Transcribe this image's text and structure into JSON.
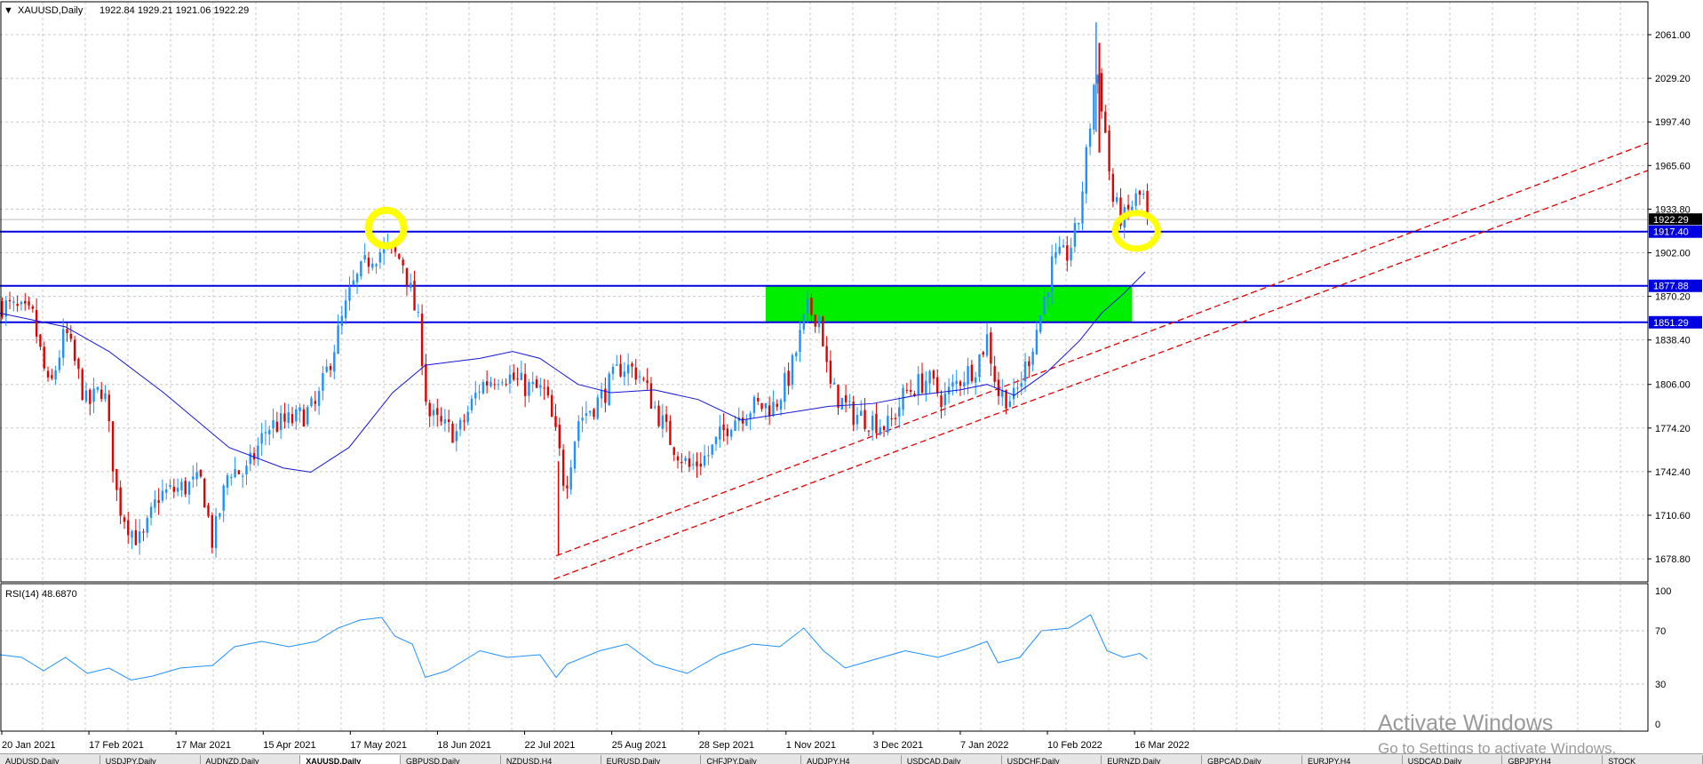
{
  "chart_header": {
    "triangle": "▼",
    "symbol": "XAUUSD,Daily",
    "ohlc": "1922.84 1929.21 1921.06 1922.29"
  },
  "rsi_header": {
    "label": "RSI(14) 48.6870"
  },
  "colors": {
    "bull": "#1e90ff",
    "bear": "#e00000",
    "ma": "#1414d8",
    "support_line": "#0000e0",
    "trendline": "#e00000",
    "zone": "#00ee00",
    "highlight": "#ffff00",
    "rsi": "#1e90ff",
    "grid": "#c8c8c8"
  },
  "price_axis": {
    "min": 1662,
    "max": 2085,
    "ticks": [
      "2061.00",
      "2029.20",
      "1997.40",
      "1965.60",
      "1933.80",
      "1902.00",
      "1870.20",
      "1838.40",
      "1806.00",
      "1774.20",
      "1742.40",
      "1710.60",
      "1678.80"
    ]
  },
  "levels": [
    {
      "value": 1917.4,
      "label": "1917.40"
    },
    {
      "value": 1877.88,
      "label": "1877.88"
    },
    {
      "value": 1851.29,
      "label": "1851.29"
    }
  ],
  "current_price": {
    "value": 1922.29,
    "label": "1922.29"
  },
  "rsi_axis": {
    "ticks": [
      "100",
      "70",
      "30",
      "0"
    ]
  },
  "time_axis": {
    "labels": [
      "20 Jan 2021",
      "17 Feb 2021",
      "17 Mar 2021",
      "15 Apr 2021",
      "17 May 2021",
      "18 Jun 2021",
      "22 Jul 2021",
      "25 Aug 2021",
      "28 Sep 2021",
      "1 Nov 2021",
      "3 Dec 2021",
      "7 Jan 2022",
      "10 Feb 2022",
      "16 Mar 2022"
    ]
  },
  "anchors": [
    {
      "x": 0,
      "p": 1865
    },
    {
      "x": 30,
      "p": 1855
    },
    {
      "x": 45,
      "p": 1800
    },
    {
      "x": 60,
      "p": 1845
    },
    {
      "x": 80,
      "p": 1790
    },
    {
      "x": 95,
      "p": 1805
    },
    {
      "x": 108,
      "p": 1720
    },
    {
      "x": 120,
      "p": 1700
    },
    {
      "x": 130,
      "p": 1690
    },
    {
      "x": 145,
      "p": 1725
    },
    {
      "x": 165,
      "p": 1730
    },
    {
      "x": 185,
      "p": 1735
    },
    {
      "x": 195,
      "p": 1690
    },
    {
      "x": 210,
      "p": 1745
    },
    {
      "x": 225,
      "p": 1740
    },
    {
      "x": 245,
      "p": 1775
    },
    {
      "x": 270,
      "p": 1780
    },
    {
      "x": 290,
      "p": 1790
    },
    {
      "x": 305,
      "p": 1830
    },
    {
      "x": 322,
      "p": 1875
    },
    {
      "x": 340,
      "p": 1900
    },
    {
      "x": 355,
      "p": 1905
    },
    {
      "x": 370,
      "p": 1895
    },
    {
      "x": 385,
      "p": 1845
    },
    {
      "x": 392,
      "p": 1785
    },
    {
      "x": 405,
      "p": 1775
    },
    {
      "x": 420,
      "p": 1770
    },
    {
      "x": 440,
      "p": 1805
    },
    {
      "x": 460,
      "p": 1815
    },
    {
      "x": 480,
      "p": 1805
    },
    {
      "x": 500,
      "p": 1800
    },
    {
      "x": 512,
      "p": 1760
    },
    {
      "x": 518,
      "p": 1730
    },
    {
      "x": 530,
      "p": 1780
    },
    {
      "x": 550,
      "p": 1795
    },
    {
      "x": 570,
      "p": 1820
    },
    {
      "x": 585,
      "p": 1815
    },
    {
      "x": 600,
      "p": 1790
    },
    {
      "x": 615,
      "p": 1765
    },
    {
      "x": 632,
      "p": 1745
    },
    {
      "x": 650,
      "p": 1755
    },
    {
      "x": 670,
      "p": 1780
    },
    {
      "x": 690,
      "p": 1790
    },
    {
      "x": 710,
      "p": 1790
    },
    {
      "x": 725,
      "p": 1815
    },
    {
      "x": 740,
      "p": 1860
    },
    {
      "x": 752,
      "p": 1855
    },
    {
      "x": 760,
      "p": 1805
    },
    {
      "x": 780,
      "p": 1785
    },
    {
      "x": 800,
      "p": 1780
    },
    {
      "x": 815,
      "p": 1775
    },
    {
      "x": 830,
      "p": 1800
    },
    {
      "x": 850,
      "p": 1810
    },
    {
      "x": 865,
      "p": 1795
    },
    {
      "x": 880,
      "p": 1810
    },
    {
      "x": 895,
      "p": 1820
    },
    {
      "x": 905,
      "p": 1840
    },
    {
      "x": 915,
      "p": 1800
    },
    {
      "x": 930,
      "p": 1795
    },
    {
      "x": 945,
      "p": 1830
    },
    {
      "x": 955,
      "p": 1860
    },
    {
      "x": 965,
      "p": 1895
    },
    {
      "x": 978,
      "p": 1900
    },
    {
      "x": 988,
      "p": 1920
    },
    {
      "x": 998,
      "p": 1985
    },
    {
      "x": 1005,
      "p": 2040
    },
    {
      "x": 1012,
      "p": 2000
    },
    {
      "x": 1020,
      "p": 1940
    },
    {
      "x": 1030,
      "p": 1925
    },
    {
      "x": 1040,
      "p": 1940
    },
    {
      "x": 1048,
      "p": 1945
    },
    {
      "x": 1052,
      "p": 1922
    }
  ],
  "ma_points": [
    {
      "x": 0,
      "p": 1858
    },
    {
      "x": 60,
      "p": 1848
    },
    {
      "x": 100,
      "p": 1830
    },
    {
      "x": 150,
      "p": 1800
    },
    {
      "x": 210,
      "p": 1760
    },
    {
      "x": 260,
      "p": 1745
    },
    {
      "x": 285,
      "p": 1742
    },
    {
      "x": 320,
      "p": 1760
    },
    {
      "x": 360,
      "p": 1800
    },
    {
      "x": 390,
      "p": 1820
    },
    {
      "x": 440,
      "p": 1825
    },
    {
      "x": 470,
      "p": 1830
    },
    {
      "x": 495,
      "p": 1825
    },
    {
      "x": 530,
      "p": 1806
    },
    {
      "x": 560,
      "p": 1800
    },
    {
      "x": 600,
      "p": 1802
    },
    {
      "x": 640,
      "p": 1795
    },
    {
      "x": 680,
      "p": 1780
    },
    {
      "x": 720,
      "p": 1785
    },
    {
      "x": 760,
      "p": 1790
    },
    {
      "x": 800,
      "p": 1792
    },
    {
      "x": 840,
      "p": 1798
    },
    {
      "x": 880,
      "p": 1802
    },
    {
      "x": 905,
      "p": 1806
    },
    {
      "x": 930,
      "p": 1798
    },
    {
      "x": 960,
      "p": 1815
    },
    {
      "x": 990,
      "p": 1838
    },
    {
      "x": 1010,
      "p": 1858
    },
    {
      "x": 1030,
      "p": 1872
    },
    {
      "x": 1050,
      "p": 1888
    }
  ],
  "rsi_points": [
    {
      "x": 0,
      "r": 52
    },
    {
      "x": 20,
      "r": 50
    },
    {
      "x": 40,
      "r": 40
    },
    {
      "x": 60,
      "r": 50
    },
    {
      "x": 80,
      "r": 38
    },
    {
      "x": 100,
      "r": 42
    },
    {
      "x": 120,
      "r": 33
    },
    {
      "x": 140,
      "r": 36
    },
    {
      "x": 165,
      "r": 42
    },
    {
      "x": 195,
      "r": 44
    },
    {
      "x": 215,
      "r": 58
    },
    {
      "x": 240,
      "r": 62
    },
    {
      "x": 265,
      "r": 58
    },
    {
      "x": 290,
      "r": 62
    },
    {
      "x": 310,
      "r": 72
    },
    {
      "x": 330,
      "r": 78
    },
    {
      "x": 350,
      "r": 80
    },
    {
      "x": 362,
      "r": 66
    },
    {
      "x": 378,
      "r": 60
    },
    {
      "x": 390,
      "r": 35
    },
    {
      "x": 410,
      "r": 40
    },
    {
      "x": 440,
      "r": 55
    },
    {
      "x": 465,
      "r": 50
    },
    {
      "x": 495,
      "r": 52
    },
    {
      "x": 510,
      "r": 35
    },
    {
      "x": 520,
      "r": 45
    },
    {
      "x": 550,
      "r": 55
    },
    {
      "x": 575,
      "r": 60
    },
    {
      "x": 600,
      "r": 45
    },
    {
      "x": 630,
      "r": 38
    },
    {
      "x": 660,
      "r": 52
    },
    {
      "x": 690,
      "r": 60
    },
    {
      "x": 715,
      "r": 58
    },
    {
      "x": 737,
      "r": 72
    },
    {
      "x": 755,
      "r": 55
    },
    {
      "x": 775,
      "r": 42
    },
    {
      "x": 800,
      "r": 48
    },
    {
      "x": 830,
      "r": 55
    },
    {
      "x": 860,
      "r": 50
    },
    {
      "x": 885,
      "r": 56
    },
    {
      "x": 905,
      "r": 62
    },
    {
      "x": 915,
      "r": 46
    },
    {
      "x": 935,
      "r": 50
    },
    {
      "x": 955,
      "r": 70
    },
    {
      "x": 980,
      "r": 72
    },
    {
      "x": 1000,
      "r": 82
    },
    {
      "x": 1015,
      "r": 55
    },
    {
      "x": 1030,
      "r": 50
    },
    {
      "x": 1045,
      "r": 53
    },
    {
      "x": 1052,
      "r": 48.7
    }
  ],
  "tabs": [
    "AUDUSD,Daily",
    "USDJPY,Daily",
    "AUDNZD,Daily",
    "XAUUSD,Daily",
    "GBPUSD,Daily",
    "NZDUSD,H4",
    "EURUSD,Daily",
    "CHFJPY,Daily",
    "AUDJPY,H4",
    "USDCAD,Daily",
    "USDCHF,Daily",
    "EURNZD,Daily",
    "GBPCAD,Daily",
    "EURJPY,H4",
    "USDCAD,Daily",
    "GBPJPY,H4",
    "STOCK"
  ],
  "active_tab": 3,
  "watermark": {
    "title": "Activate Windows",
    "subtitle": "Go to Settings to activate Windows."
  }
}
